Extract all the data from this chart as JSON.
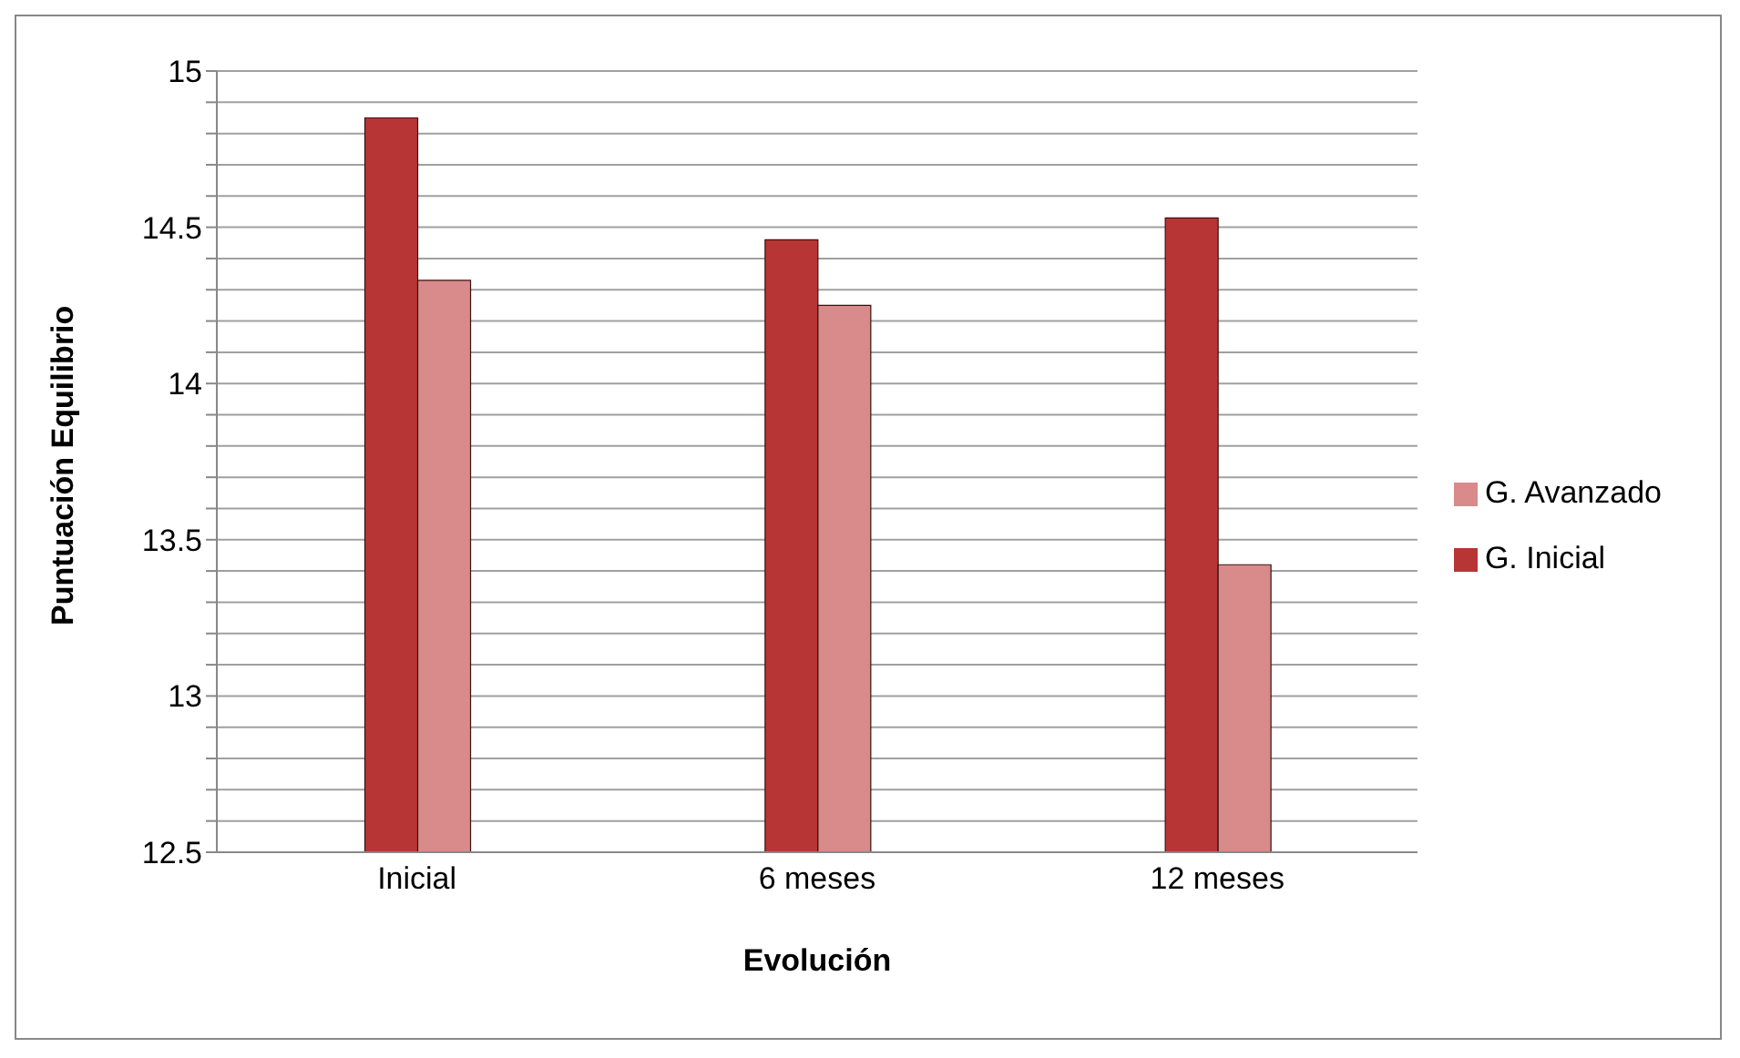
{
  "chart_data": {
    "type": "bar",
    "xlabel": "Evolución",
    "ylabel": "Puntuación Equilibrio",
    "categories": [
      "Inicial",
      "6 meses",
      "12 meses"
    ],
    "series": [
      {
        "name": "G. Inicial",
        "color": "#b83535",
        "values": [
          14.85,
          14.46,
          14.53
        ]
      },
      {
        "name": "G. Avanzado",
        "color": "#d98a8a",
        "values": [
          14.33,
          14.25,
          13.42
        ]
      }
    ],
    "ylim": [
      12.5,
      15
    ],
    "yticks": [
      12.5,
      {
        "value": 12.6,
        "label": null
      },
      {
        "value": 12.7,
        "label": null
      },
      {
        "value": 12.8,
        "label": null
      },
      {
        "value": 12.9,
        "label": null
      },
      13,
      {
        "value": 13.1,
        "label": null
      },
      {
        "value": 13.2,
        "label": null
      },
      {
        "value": 13.3,
        "label": null
      },
      {
        "value": 13.4,
        "label": null
      },
      13.5,
      {
        "value": 13.6,
        "label": null
      },
      {
        "value": 13.7,
        "label": null
      },
      {
        "value": 13.8,
        "label": null
      },
      {
        "value": 13.9,
        "label": null
      },
      14,
      {
        "value": 14.1,
        "label": null
      },
      {
        "value": 14.2,
        "label": null
      },
      {
        "value": 14.3,
        "label": null
      },
      {
        "value": 14.4,
        "label": null
      },
      14.5,
      {
        "value": 14.6,
        "label": null
      },
      {
        "value": 14.7,
        "label": null
      },
      {
        "value": 14.8,
        "label": null
      },
      {
        "value": 14.9,
        "label": null
      },
      15
    ],
    "grid": "y",
    "legend": "right"
  }
}
